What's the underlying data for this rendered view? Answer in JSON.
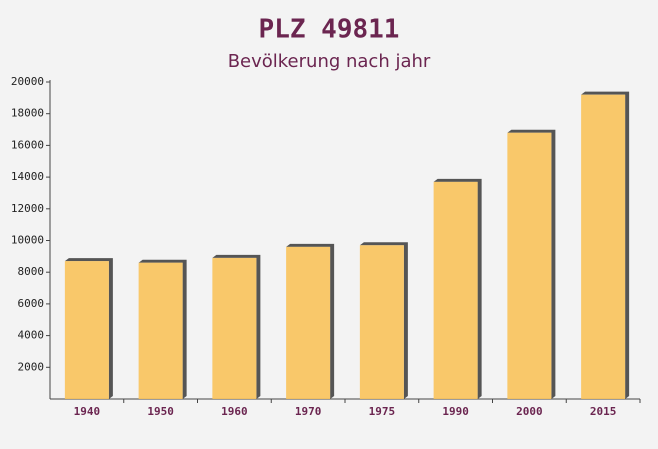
{
  "chart_data": {
    "type": "bar",
    "title": "PLZ 49811",
    "subtitle": "Bevölkerung nach jahr",
    "categories": [
      "1940",
      "1950",
      "1960",
      "1970",
      "1975",
      "1990",
      "2000",
      "2015"
    ],
    "values": [
      8700,
      8600,
      8900,
      9600,
      9700,
      13700,
      16800,
      19200
    ],
    "color": "#f9c35b",
    "ylim": [
      0,
      20000
    ],
    "yticks": [
      2000,
      4000,
      6000,
      8000,
      10000,
      12000,
      14000,
      16000,
      18000,
      20000
    ]
  }
}
